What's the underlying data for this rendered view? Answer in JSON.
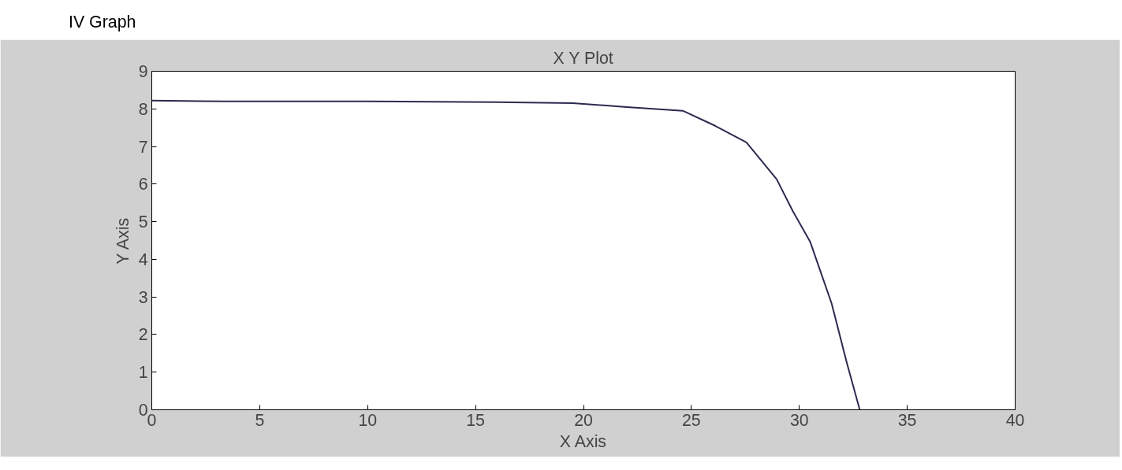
{
  "chart_data": {
    "type": "line",
    "title": "X Y Plot",
    "xlabel": "X Axis",
    "ylabel": "Y Axis",
    "annotations": [
      "IV Graph"
    ],
    "series": [
      {
        "color": "#2b2b50",
        "x": [
          0,
          3.5,
          10,
          16,
          19.5,
          22,
          24.6,
          26.1,
          27.55,
          28.95,
          29.7,
          30.5,
          31.5,
          32.2,
          32.8
        ],
        "values": [
          8.22,
          8.2,
          8.2,
          8.18,
          8.15,
          8.05,
          7.95,
          7.55,
          7.11,
          6.13,
          5.28,
          4.47,
          2.82,
          1.25,
          0
        ]
      }
    ],
    "xlim": [
      0,
      40
    ],
    "ylim": [
      0,
      9
    ],
    "xticks": [
      0,
      5,
      10,
      15,
      20,
      25,
      30,
      35,
      40
    ],
    "yticks": [
      0,
      1,
      2,
      3,
      4,
      5,
      6,
      7,
      8,
      9
    ],
    "grid": false
  }
}
